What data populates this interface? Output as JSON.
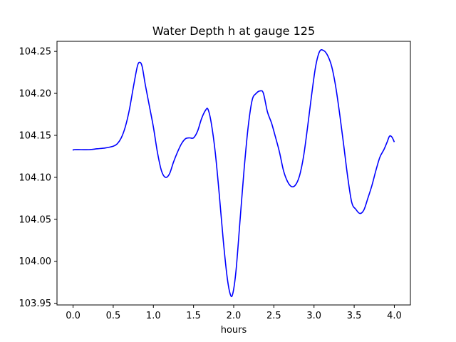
{
  "chart_data": {
    "type": "line",
    "title": "Water Depth h at gauge 125",
    "xlabel": "hours",
    "ylabel": "",
    "xlim": [
      -0.2,
      4.2
    ],
    "ylim": [
      103.948,
      104.262
    ],
    "grid": false,
    "legend": "none",
    "x_ticks": [
      0.0,
      0.5,
      1.0,
      1.5,
      2.0,
      2.5,
      3.0,
      3.5,
      4.0
    ],
    "x_tick_labels": [
      "0.0",
      "0.5",
      "1.0",
      "1.5",
      "2.0",
      "2.5",
      "3.0",
      "3.5",
      "4.0"
    ],
    "y_ticks": [
      103.95,
      104.0,
      104.05,
      104.1,
      104.15,
      104.2,
      104.25
    ],
    "y_tick_labels": [
      "103.95",
      "104.00",
      "104.05",
      "104.10",
      "104.15",
      "104.20",
      "104.25"
    ],
    "series": [
      {
        "color": "#0000ff",
        "x": [
          0.0,
          0.01,
          0.1,
          0.2,
          0.3,
          0.4,
          0.5,
          0.55,
          0.6,
          0.65,
          0.7,
          0.75,
          0.8,
          0.83,
          0.86,
          0.9,
          0.95,
          1.0,
          1.05,
          1.1,
          1.15,
          1.2,
          1.25,
          1.3,
          1.35,
          1.4,
          1.45,
          1.5,
          1.55,
          1.6,
          1.65,
          1.68,
          1.72,
          1.77,
          1.82,
          1.87,
          1.92,
          1.96,
          1.99,
          2.03,
          2.08,
          2.13,
          2.18,
          2.23,
          2.28,
          2.33,
          2.37,
          2.42,
          2.47,
          2.52,
          2.57,
          2.62,
          2.67,
          2.72,
          2.77,
          2.82,
          2.87,
          2.92,
          2.97,
          3.02,
          3.07,
          3.12,
          3.17,
          3.22,
          3.27,
          3.32,
          3.37,
          3.42,
          3.47,
          3.52,
          3.57,
          3.62,
          3.67,
          3.72,
          3.77,
          3.82,
          3.87,
          3.91,
          3.94,
          3.97,
          4.0
        ],
        "y": [
          104.132,
          104.133,
          104.133,
          104.133,
          104.134,
          104.135,
          104.137,
          104.14,
          104.147,
          104.16,
          104.18,
          104.207,
          104.232,
          104.237,
          104.232,
          104.21,
          104.185,
          104.16,
          104.13,
          104.108,
          104.1,
          104.104,
          104.118,
          104.13,
          104.14,
          104.146,
          104.147,
          104.147,
          104.155,
          104.17,
          104.18,
          104.181,
          104.165,
          104.13,
          104.08,
          104.025,
          103.98,
          103.96,
          103.962,
          103.99,
          104.05,
          104.11,
          104.16,
          104.192,
          104.2,
          104.203,
          104.2,
          104.178,
          104.165,
          104.148,
          104.13,
          104.108,
          104.095,
          104.089,
          104.091,
          104.102,
          104.125,
          104.16,
          104.198,
          104.232,
          104.25,
          104.251,
          104.245,
          104.232,
          104.208,
          104.175,
          104.138,
          104.1,
          104.07,
          104.062,
          104.057,
          104.061,
          104.075,
          104.09,
          104.108,
          104.124,
          104.133,
          104.142,
          104.149,
          104.148,
          104.142
        ]
      }
    ]
  }
}
